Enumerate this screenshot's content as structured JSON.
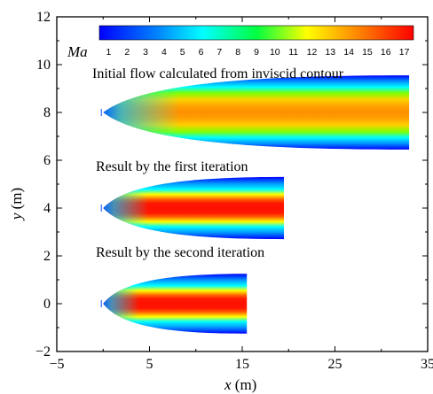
{
  "chart_data": {
    "type": "contour",
    "xlabel_var": "x",
    "xlabel_unit": " (m)",
    "ylabel_var": "y",
    "ylabel_unit": " (m)",
    "xlim": [
      -5,
      35
    ],
    "ylim": [
      -2,
      12
    ],
    "xticks": [
      "−5",
      "5",
      "15",
      "25",
      "35"
    ],
    "xtick_values": [
      -5,
      5,
      15,
      25,
      35
    ],
    "yticks": [
      "−2",
      "0",
      "2",
      "4",
      "6",
      "8",
      "10",
      "12"
    ],
    "ytick_values": [
      -2,
      0,
      2,
      4,
      6,
      8,
      10,
      12
    ],
    "colorbar": {
      "label": "Ma",
      "min": 0.5,
      "max": 17.5,
      "ticks": [
        "1",
        "2",
        "3",
        "4",
        "5",
        "6",
        "7",
        "8",
        "9",
        "10",
        "11",
        "12",
        "13",
        "14",
        "15",
        "16",
        "17"
      ],
      "tick_values": [
        1,
        2,
        3,
        4,
        5,
        6,
        7,
        8,
        9,
        10,
        11,
        12,
        13,
        14,
        15,
        16,
        17
      ]
    },
    "annotations": [
      {
        "text": "Initial flow calculated from inviscid contour"
      },
      {
        "text": "Result by the first iteration"
      },
      {
        "text": "Result by the second iteration"
      }
    ],
    "fields": [
      {
        "annotation": "Initial flow calculated from inviscid contour",
        "x_start": 0,
        "x_end": 33,
        "y_center": 8,
        "exit_half_height": 1.55,
        "core_mach": 14.5
      },
      {
        "annotation": "Result by the first iteration",
        "x_start": 0,
        "x_end": 19.5,
        "y_center": 4,
        "exit_half_height": 1.3,
        "core_mach": 16.5
      },
      {
        "annotation": "Result by the second iteration",
        "x_start": 0,
        "x_end": 15.5,
        "y_center": 0,
        "exit_half_height": 1.25,
        "core_mach": 16.8
      }
    ]
  }
}
